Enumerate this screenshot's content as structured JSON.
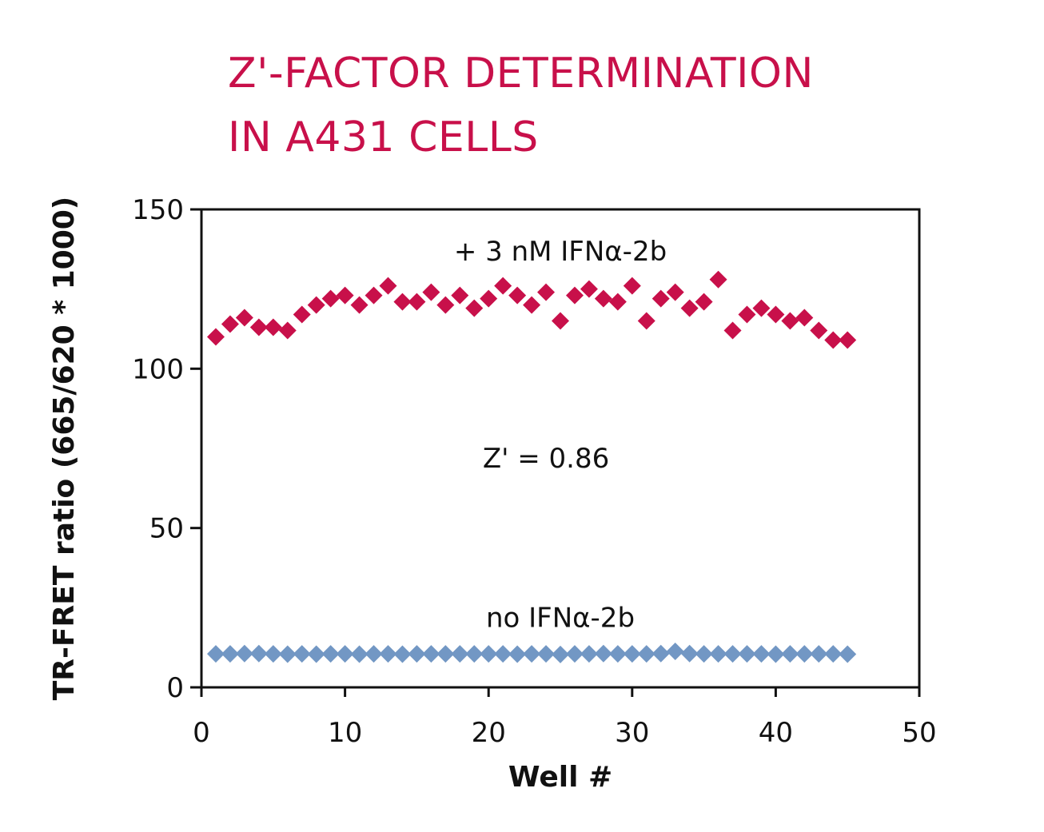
{
  "chart_data": {
    "type": "scatter",
    "title_lines": [
      "Z'-FACTOR DETERMINATION",
      "IN A431 CELLS"
    ],
    "xlabel": "Well #",
    "ylabel": "TR-FRET ratio (665/620 * 1000)",
    "xlim": [
      0,
      50
    ],
    "ylim": [
      0,
      150
    ],
    "xticks": [
      0,
      10,
      20,
      30,
      40,
      50
    ],
    "yticks": [
      0,
      50,
      100,
      150
    ],
    "grid": false,
    "marker": "diamond",
    "series": [
      {
        "annotation": "+ 3 nM IFNα-2b",
        "color": "#c8104a",
        "x": [
          1,
          2,
          3,
          4,
          5,
          6,
          7,
          8,
          9,
          10,
          11,
          12,
          13,
          14,
          15,
          16,
          17,
          18,
          19,
          20,
          21,
          22,
          23,
          24,
          25,
          26,
          27,
          28,
          29,
          30,
          31,
          32,
          33,
          34,
          35,
          36,
          37,
          38,
          39,
          40,
          41,
          42,
          43,
          44,
          45
        ],
        "y": [
          110,
          114,
          116,
          113,
          113,
          112,
          117,
          120,
          122,
          123,
          120,
          123,
          126,
          121,
          121,
          124,
          120,
          123,
          119,
          122,
          126,
          123,
          120,
          124,
          115,
          123,
          125,
          122,
          121,
          126,
          115,
          122,
          124,
          119,
          121,
          128,
          112,
          117,
          119,
          117,
          115,
          116,
          112,
          109,
          109
        ]
      },
      {
        "annotation": "no IFNα-2b",
        "color": "#7297c4",
        "x": [
          1,
          2,
          3,
          4,
          5,
          6,
          7,
          8,
          9,
          10,
          11,
          12,
          13,
          14,
          15,
          16,
          17,
          18,
          19,
          20,
          21,
          22,
          23,
          24,
          25,
          26,
          27,
          28,
          29,
          30,
          31,
          32,
          33,
          34,
          35,
          36,
          37,
          38,
          39,
          40,
          41,
          42,
          43,
          44,
          45
        ],
        "y": [
          10.5,
          10.5,
          10.6,
          10.6,
          10.5,
          10.4,
          10.5,
          10.4,
          10.5,
          10.5,
          10.4,
          10.5,
          10.5,
          10.4,
          10.5,
          10.5,
          10.5,
          10.5,
          10.5,
          10.5,
          10.5,
          10.4,
          10.5,
          10.5,
          10.3,
          10.5,
          10.5,
          10.6,
          10.5,
          10.5,
          10.5,
          10.6,
          11.3,
          10.6,
          10.5,
          10.5,
          10.5,
          10.5,
          10.5,
          10.4,
          10.5,
          10.5,
          10.5,
          10.5,
          10.4
        ]
      }
    ],
    "annotations": [
      {
        "text": "Z' = 0.86",
        "x": 24,
        "y": 72
      }
    ],
    "series_label_positions": [
      {
        "x": 25,
        "y": 137
      },
      {
        "x": 25,
        "y": 22
      }
    ]
  }
}
